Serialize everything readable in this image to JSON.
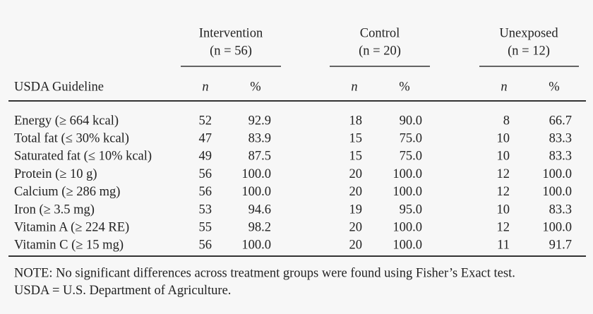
{
  "table": {
    "groups": [
      {
        "name": "Intervention",
        "subtitle": "(n = 56)"
      },
      {
        "name": "Control",
        "subtitle": "(n = 20)"
      },
      {
        "name": "Unexposed",
        "subtitle": "(n = 12)"
      }
    ],
    "header": [
      "USDA Guideline",
      "n",
      "%",
      "n",
      "%",
      "n",
      "%"
    ],
    "rows": [
      [
        "Energy (≥ 664 kcal)",
        "52",
        "92.9",
        "18",
        "90.0",
        "8",
        "66.7"
      ],
      [
        "Total fat (≤ 30% kcal)",
        "47",
        "83.9",
        "15",
        "75.0",
        "10",
        "83.3"
      ],
      [
        "Saturated fat (≤ 10% kcal)",
        "49",
        "87.5",
        "15",
        "75.0",
        "10",
        "83.3"
      ],
      [
        "Protein (≥ 10 g)",
        "56",
        "100.0",
        "20",
        "100.0",
        "12",
        "100.0"
      ],
      [
        "Calcium (≥ 286 mg)",
        "56",
        "100.0",
        "20",
        "100.0",
        "12",
        "100.0"
      ],
      [
        "Iron (≥ 3.5 mg)",
        "53",
        "94.6",
        "19",
        "95.0",
        "10",
        "83.3"
      ],
      [
        "Vitamin A (≥ 224 RE)",
        "55",
        "98.2",
        "20",
        "100.0",
        "12",
        "100.0"
      ],
      [
        "Vitamin C (≥ 15 mg)",
        "56",
        "100.0",
        "20",
        "100.0",
        "11",
        "91.7"
      ]
    ],
    "notes": [
      "NOTE: No significant differences across treatment groups were found using Fisher’s Exact test.",
      "USDA = U.S. Department of Agriculture."
    ]
  }
}
